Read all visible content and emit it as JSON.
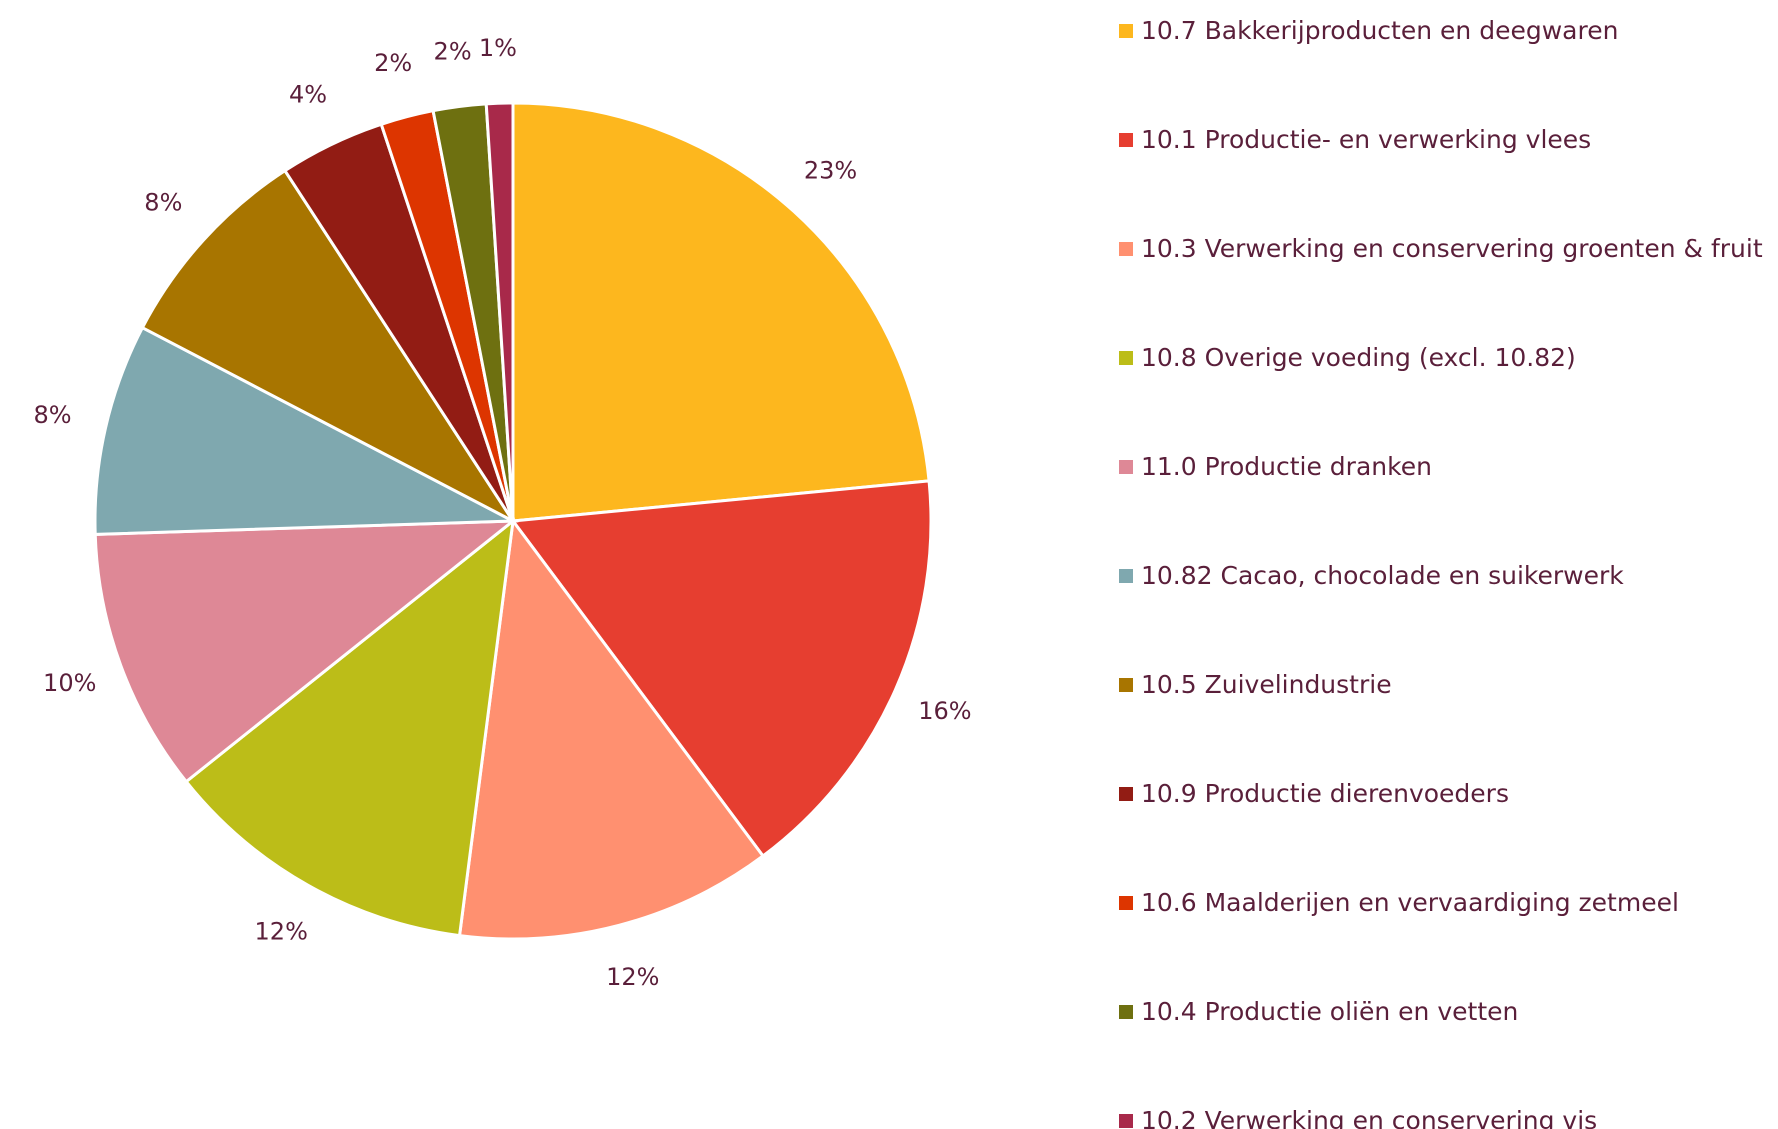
{
  "chart_data": {
    "type": "pie",
    "categories": [
      "10.7 Bakkerijproducten en deegwaren",
      "10.1 Productie- en verwerking vlees",
      "10.3 Verwerking en conservering groenten & fruit",
      "10.8 Overige voeding (excl. 10.82)",
      "11.0 Productie dranken",
      "10.82 Cacao, chocolade en suikerwerk",
      "10.5 Zuivelindustrie",
      "10.9 Productie dierenvoeders",
      "10.6 Maalderijen en vervaardiging zetmeel",
      "10.4 Productie oliën en vetten",
      "10.2 Verwerking en conservering vis"
    ],
    "values": [
      23,
      16,
      12,
      12,
      10,
      8,
      8,
      4,
      2,
      2,
      1
    ],
    "value_labels": [
      "23%",
      "16%",
      "12%",
      "12%",
      "10%",
      "8%",
      "8%",
      "4%",
      "2%",
      "2%",
      "1%"
    ],
    "colors": [
      "#fdb71e",
      "#e63e30",
      "#ff9070",
      "#bcbd18",
      "#de8896",
      "#7fa8af",
      "#a87500",
      "#921c14",
      "#dd3500",
      "#6e7010",
      "#a8294a"
    ],
    "legend": "right"
  }
}
